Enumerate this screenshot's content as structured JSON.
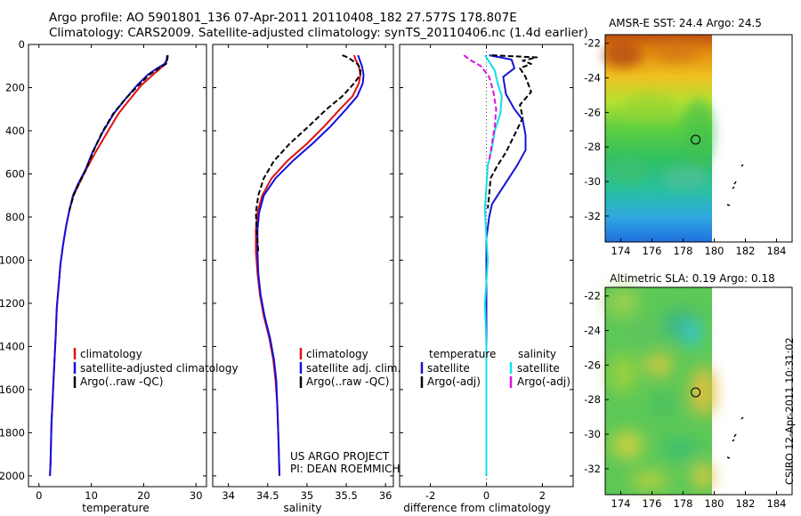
{
  "header": {
    "line1": "Argo profile: AO 5901801_136 07-Apr-2011 20110408_182 27.577S 178.807E",
    "line2": "Climatology: CARS2009. Satellite-adjusted climatology: synTS_20110406.nc (1.4d earlier)"
  },
  "side_label": "CSIRO 12-Apr-2011 10:31:02",
  "colors": {
    "climatology": "#e01010",
    "satellite": "#1010e0",
    "argo": "#000000",
    "temp_satellite": "#1515d0",
    "sal_satellite": "#10e0e8",
    "sal_argo": "#e010e0"
  },
  "chart_data": [
    {
      "type": "line",
      "panel": "temperature",
      "xlabel": "temperature",
      "ylabel": "",
      "xlim": [
        -2,
        32
      ],
      "ylim": [
        2050,
        0
      ],
      "xticks": [
        0,
        10,
        20,
        30
      ],
      "yticks": [
        0,
        200,
        400,
        600,
        800,
        1000,
        1200,
        1400,
        1600,
        1800,
        2000
      ],
      "legend": [
        "climatology",
        "satellite-adjusted climatology",
        "Argo(..raw -QC)"
      ],
      "legend_position": "lower-right",
      "series": [
        {
          "name": "climatology",
          "color": "#e01010",
          "x": [
            24.6,
            24.5,
            24.2,
            23.2,
            21.8,
            19.5,
            17.5,
            15.2,
            13.0,
            10.8,
            9.0,
            7.6,
            6.6,
            5.8,
            5.2,
            4.6,
            4.1,
            3.8,
            3.4,
            3.2,
            3.0,
            2.8,
            2.6,
            2.4,
            2.3,
            2.2,
            2.1
          ],
          "y": [
            50,
            70,
            90,
            110,
            140,
            190,
            250,
            320,
            410,
            500,
            580,
            650,
            700,
            770,
            840,
            930,
            1020,
            1110,
            1220,
            1350,
            1450,
            1550,
            1650,
            1750,
            1850,
            1950,
            2000
          ]
        },
        {
          "name": "satellite-adjusted climatology",
          "color": "#1010e0",
          "x": [
            24.5,
            24.4,
            24.0,
            22.6,
            20.8,
            18.7,
            16.6,
            14.3,
            12.1,
            10.2,
            8.9,
            7.4,
            6.5,
            5.8,
            5.2,
            4.6,
            4.1,
            3.8,
            3.4,
            3.2,
            3.0,
            2.8,
            2.6,
            2.4,
            2.3,
            2.2,
            2.1
          ],
          "y": [
            50,
            70,
            90,
            110,
            140,
            190,
            250,
            320,
            410,
            500,
            580,
            650,
            700,
            770,
            840,
            930,
            1020,
            1110,
            1220,
            1350,
            1450,
            1550,
            1650,
            1750,
            1850,
            1950,
            2000
          ]
        },
        {
          "name": "Argo(..raw -QC)",
          "color": "#000000",
          "dash": "6,3",
          "x": [
            24.6,
            24.5,
            24.3,
            22.9,
            21.1,
            19.0,
            16.6,
            14.2,
            12.0,
            10.3,
            9.0,
            7.5,
            6.6,
            5.8
          ],
          "y": [
            50,
            70,
            90,
            110,
            140,
            190,
            250,
            320,
            410,
            500,
            580,
            650,
            700,
            770
          ]
        }
      ]
    },
    {
      "type": "line",
      "panel": "salinity",
      "xlabel": "salinity",
      "ylabel": "",
      "xlim": [
        33.8,
        36.1
      ],
      "ylim": [
        2050,
        0
      ],
      "xticks": [
        34,
        34.5,
        35,
        35.5,
        36
      ],
      "legend": [
        "climatology",
        "satellite adj. clim.",
        "Argo(..raw -QC)"
      ],
      "legend_position": "lower-right",
      "annotation": [
        "US ARGO PROJECT",
        "PI: DEAN ROEMMICH"
      ],
      "series": [
        {
          "name": "climatology",
          "color": "#e01010",
          "x": [
            35.6,
            35.62,
            35.66,
            35.68,
            35.66,
            35.58,
            35.42,
            35.22,
            35.0,
            34.75,
            34.55,
            34.43,
            34.37,
            34.35,
            34.35,
            34.37,
            34.4,
            34.45,
            34.52,
            34.57,
            34.6,
            34.62,
            34.63,
            34.64,
            34.65
          ],
          "y": [
            50,
            70,
            100,
            140,
            180,
            240,
            300,
            380,
            460,
            540,
            620,
            700,
            780,
            860,
            960,
            1060,
            1160,
            1260,
            1360,
            1460,
            1560,
            1660,
            1760,
            1860,
            2000
          ]
        },
        {
          "name": "satellite adj. clim.",
          "color": "#1010e0",
          "x": [
            35.65,
            35.67,
            35.7,
            35.72,
            35.71,
            35.64,
            35.5,
            35.3,
            35.07,
            34.82,
            34.6,
            34.45,
            34.39,
            34.37,
            34.37,
            34.38,
            34.41,
            34.46,
            34.53,
            34.58,
            34.61,
            34.62,
            34.63,
            34.64,
            34.65
          ],
          "y": [
            50,
            70,
            100,
            140,
            180,
            240,
            300,
            380,
            460,
            540,
            620,
            700,
            780,
            860,
            960,
            1060,
            1160,
            1260,
            1360,
            1460,
            1560,
            1660,
            1760,
            1860,
            2000
          ]
        },
        {
          "name": "Argo(..raw -QC)",
          "color": "#000000",
          "dash": "6,3",
          "x": [
            35.45,
            35.52,
            35.58,
            35.64,
            35.68,
            35.68,
            35.6,
            35.45,
            35.25,
            35.02,
            34.78,
            34.58,
            34.45,
            34.38,
            34.35,
            34.36,
            34.38
          ],
          "y": [
            50,
            60,
            75,
            90,
            110,
            140,
            180,
            240,
            300,
            380,
            460,
            540,
            620,
            700,
            780,
            860,
            960
          ]
        }
      ]
    },
    {
      "type": "line",
      "panel": "difference",
      "xlabel": "difference from climatology",
      "ylabel": "",
      "xlim": [
        -3.1,
        3.1
      ],
      "ylim": [
        2050,
        0
      ],
      "xticks": [
        -2,
        0,
        2
      ],
      "legend_groups": [
        {
          "title": "temperature",
          "entries": [
            "satellite",
            "Argo(-adj)"
          ]
        },
        {
          "title": "salinity",
          "entries": [
            "satellite",
            "Argo(-adj)"
          ]
        }
      ],
      "legend_position": "lower-right",
      "series": [
        {
          "name": "temperature satellite",
          "color": "#1515d0",
          "x": [
            0.1,
            0.5,
            0.9,
            1.0,
            0.6,
            0.7,
            1.0,
            1.3,
            1.4,
            1.4,
            1.1,
            0.8,
            0.5,
            0.2,
            0.1,
            0.0,
            0.0,
            0.0,
            0.0,
            0.0,
            0.0,
            0.0,
            0.0
          ],
          "y": [
            50,
            60,
            70,
            110,
            150,
            230,
            300,
            350,
            420,
            490,
            560,
            620,
            680,
            740,
            800,
            900,
            1000,
            1200,
            1400,
            1600,
            1800,
            1900,
            2000
          ]
        },
        {
          "name": "temperature Argo(-adj)",
          "color": "#000000",
          "dash": "6,3",
          "x": [
            0.2,
            1.8,
            1.3,
            1.6,
            1.2,
            1.4,
            1.6,
            1.2,
            1.3,
            1.0,
            0.7,
            0.4,
            0.15,
            0.1,
            0.05
          ],
          "y": [
            50,
            60,
            75,
            90,
            110,
            150,
            220,
            280,
            340,
            420,
            500,
            560,
            620,
            700,
            760
          ]
        },
        {
          "name": "salinity satellite",
          "color": "#10e0e8",
          "x": [
            -0.05,
            0.1,
            0.3,
            0.4,
            0.55,
            0.5,
            0.3,
            0.2,
            0.05,
            0.0,
            -0.05,
            0.0,
            0.05,
            0.0,
            -0.05,
            0.0,
            0.0,
            0.0,
            0.0,
            0.0
          ],
          "y": [
            50,
            80,
            120,
            180,
            240,
            320,
            400,
            480,
            560,
            660,
            760,
            900,
            1000,
            1100,
            1200,
            1400,
            1600,
            1800,
            1900,
            2000
          ]
        },
        {
          "name": "salinity Argo(-adj)",
          "color": "#e010e0",
          "dash": "6,3",
          "x": [
            -0.8,
            -0.6,
            -0.2,
            0.1,
            0.25,
            0.35,
            0.3,
            0.2,
            0.1
          ],
          "y": [
            50,
            70,
            100,
            150,
            220,
            300,
            380,
            460,
            540
          ]
        }
      ]
    },
    {
      "type": "heatmap",
      "panel": "sst_map",
      "title": "AMSR-E SST: 24.4 Argo: 24.5",
      "xlim": [
        173,
        185
      ],
      "ylim": [
        -33.5,
        -21.5
      ],
      "xticks": [
        174,
        176,
        178,
        180,
        182,
        184
      ],
      "yticks": [
        -22,
        -24,
        -26,
        -28,
        -30,
        -32
      ],
      "data_extent_lon": [
        173,
        180
      ],
      "marker": {
        "lon": 178.807,
        "lat": -27.577
      }
    },
    {
      "type": "heatmap",
      "panel": "sla_map",
      "title": "Altimetric SLA: 0.19 Argo: 0.18",
      "xlim": [
        173,
        185
      ],
      "ylim": [
        -33.5,
        -21.5
      ],
      "xticks": [
        174,
        176,
        178,
        180,
        182,
        184
      ],
      "yticks": [
        -22,
        -24,
        -26,
        -28,
        -30,
        -32
      ],
      "data_extent_lon": [
        173,
        180
      ],
      "marker": {
        "lon": 178.807,
        "lat": -27.577
      }
    }
  ]
}
